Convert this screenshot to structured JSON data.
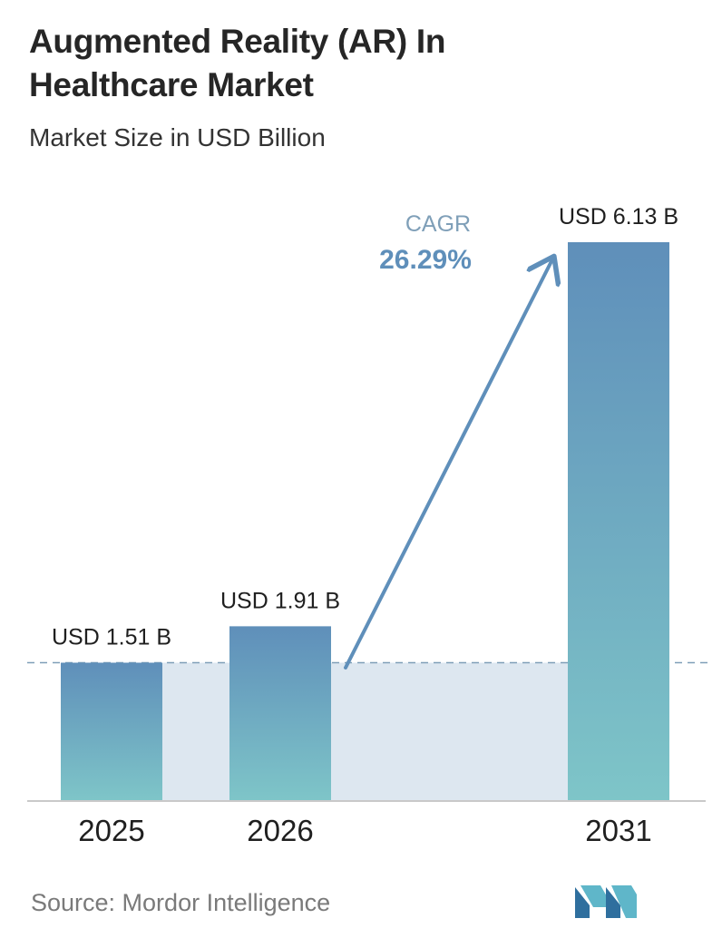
{
  "header": {
    "title": "Augmented Reality (AR) In Healthcare Market",
    "subtitle": "Market Size in USD Billion"
  },
  "chart_data": {
    "type": "bar",
    "categories": [
      "2025",
      "2026",
      "2031"
    ],
    "values": [
      1.51,
      1.91,
      6.13
    ],
    "value_labels": [
      "USD 1.51 B",
      "USD 1.91 B",
      "USD 6.13 B"
    ],
    "ylim": [
      0,
      6.13
    ],
    "grid": false,
    "cagr": {
      "label": "CAGR",
      "value": "26.29%"
    },
    "colors": {
      "bar_top": "#5f8fba",
      "bar_bottom": "#7ec5c8",
      "band": "#dde7f0",
      "baseline": "#7f9fb8",
      "arrow": "#5f8fba",
      "cagr_label": "#7f9fb8",
      "cagr_value": "#5f8fba"
    }
  },
  "footer": {
    "source": "Source:  Mordor Intelligence",
    "logo_icon": "mordor-intelligence-logo-icon"
  }
}
